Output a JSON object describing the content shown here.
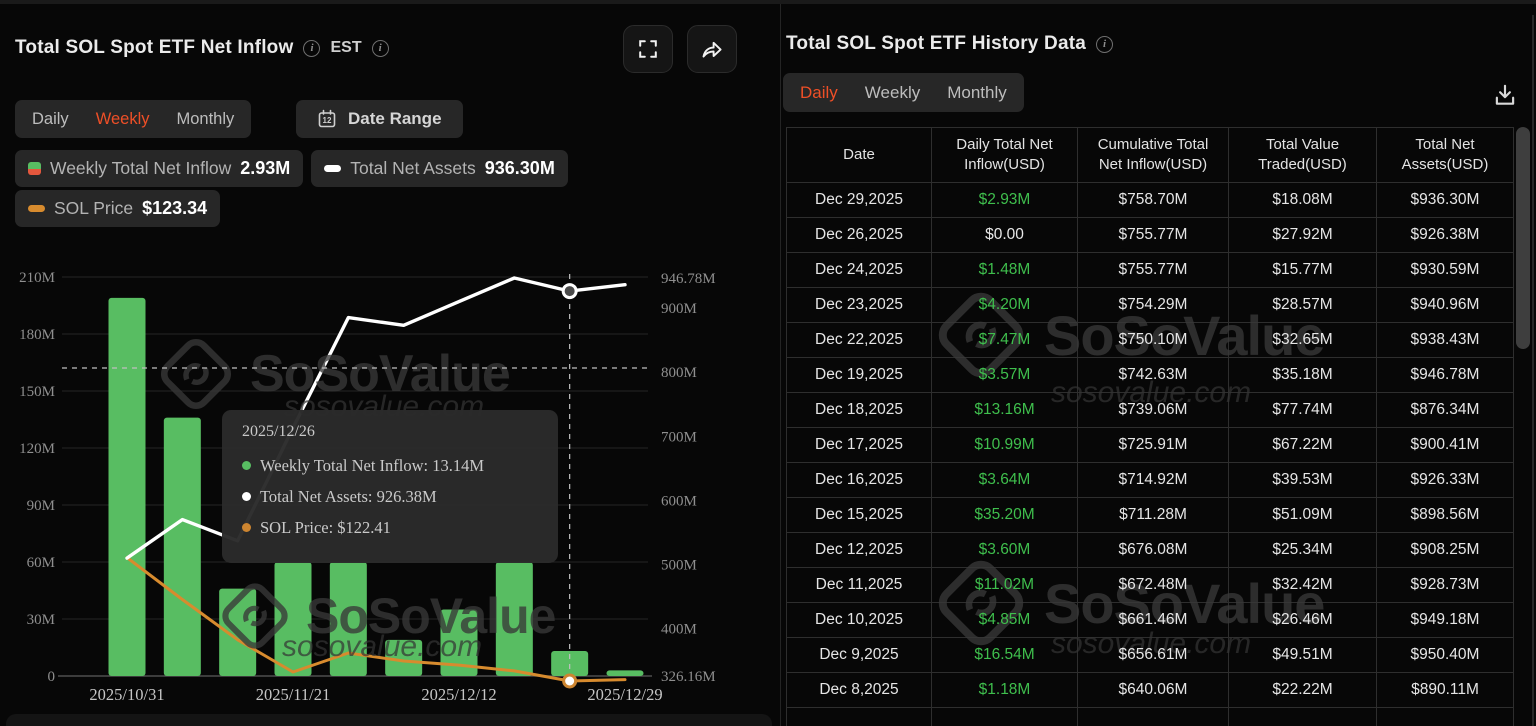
{
  "brand": {
    "accent_orange": "#ee4f27",
    "bar_green": "#58bd62",
    "assets_line_white": "#ffffff",
    "sol_price_orange": "#d78b2e",
    "table_green": "#3fbf4d",
    "watermark_text": "SoSoValue",
    "watermark_domain": "sosovalue.com"
  },
  "left_panel": {
    "title": "Total SOL Spot ETF Net Inflow",
    "timezone_label": "EST",
    "tabs": [
      {
        "label": "Daily",
        "active": false
      },
      {
        "label": "Weekly",
        "active": true
      },
      {
        "label": "Monthly",
        "active": false
      }
    ],
    "date_range_label": "Date Range",
    "legend": [
      {
        "label": "Weekly Total Net Inflow",
        "value": "2.93M",
        "icon": "green-red-square"
      },
      {
        "label": "Total Net Assets",
        "value": "936.30M",
        "icon": "white-dash"
      },
      {
        "label": "SOL Price",
        "value": "$123.34",
        "icon": "orange-dash"
      }
    ]
  },
  "chart_data": {
    "type": "bar",
    "subtype": "bar+line combo, weekly",
    "num_points": 10,
    "x_tick_labels": [
      "2025/10/31",
      "2025/11/21",
      "2025/12/12",
      "2025/12/29"
    ],
    "x_tick_indices": [
      0,
      3,
      6,
      9
    ],
    "bar_series": {
      "name": "Weekly Total Net Inflow",
      "axis": "left",
      "unit": "USD millions",
      "values_m": [
        199,
        136,
        46,
        60,
        60,
        19,
        35,
        60,
        13.14,
        2.93
      ]
    },
    "line_series": [
      {
        "name": "Total Net Assets",
        "axis": "right",
        "unit": "USD millions",
        "values_m": [
          510,
          570,
          537,
          713,
          885,
          873,
          910,
          946.78,
          926.38,
          936.3
        ]
      },
      {
        "name": "SOL Price",
        "axis": "hidden",
        "unit": "USD",
        "values": [
          202,
          175,
          149,
          128.2,
          140.5,
          135.3,
          132.7,
          128.9,
          122.41,
          123.34
        ]
      }
    ],
    "left_axis": {
      "ticks": [
        "210M",
        "180M",
        "150M",
        "120M",
        "90M",
        "60M",
        "30M",
        "0"
      ],
      "min": 0,
      "max_m": 210
    },
    "right_axis": {
      "ticks": [
        "946.78M",
        "900M",
        "800M",
        "700M",
        "600M",
        "500M",
        "400M",
        "326.16M"
      ],
      "tick_values_m": [
        946.78,
        900,
        800,
        700,
        600,
        500,
        400,
        326.16
      ],
      "min_m": 326.16,
      "max_m": 946.78
    },
    "grid": true,
    "legend_position": "top-left chips",
    "tooltip": {
      "date": "2025/12/26",
      "highlight_index": 8,
      "rows": [
        {
          "label": "Weekly Total Net Inflow",
          "value": "13.14M",
          "dot": "#58bd62"
        },
        {
          "label": "Total Net Assets",
          "value": "926.38M",
          "dot": "#ffffff"
        },
        {
          "label": "SOL Price",
          "value": "$122.41",
          "dot": "#cd8530"
        }
      ]
    }
  },
  "right_panel": {
    "title": "Total SOL Spot ETF History Data",
    "tabs": [
      {
        "label": "Daily",
        "active": true
      },
      {
        "label": "Weekly",
        "active": false
      },
      {
        "label": "Monthly",
        "active": false
      }
    ],
    "table": {
      "headers": [
        "Date",
        "Daily Total Net Inflow(USD)",
        "Cumulative Total Net Inflow(USD)",
        "Total Value Traded(USD)",
        "Total Net Assets(USD)"
      ],
      "rows": [
        {
          "cells": [
            "Dec 29,2025",
            "$2.93M",
            "$758.70M",
            "$18.08M",
            "$936.30M"
          ],
          "inflow_green": true
        },
        {
          "cells": [
            "Dec 26,2025",
            "$0.00",
            "$755.77M",
            "$27.92M",
            "$926.38M"
          ],
          "inflow_green": false
        },
        {
          "cells": [
            "Dec 24,2025",
            "$1.48M",
            "$755.77M",
            "$15.77M",
            "$930.59M"
          ],
          "inflow_green": true
        },
        {
          "cells": [
            "Dec 23,2025",
            "$4.20M",
            "$754.29M",
            "$28.57M",
            "$940.96M"
          ],
          "inflow_green": true
        },
        {
          "cells": [
            "Dec 22,2025",
            "$7.47M",
            "$750.10M",
            "$32.65M",
            "$938.43M"
          ],
          "inflow_green": true
        },
        {
          "cells": [
            "Dec 19,2025",
            "$3.57M",
            "$742.63M",
            "$35.18M",
            "$946.78M"
          ],
          "inflow_green": true
        },
        {
          "cells": [
            "Dec 18,2025",
            "$13.16M",
            "$739.06M",
            "$77.74M",
            "$876.34M"
          ],
          "inflow_green": true
        },
        {
          "cells": [
            "Dec 17,2025",
            "$10.99M",
            "$725.91M",
            "$67.22M",
            "$900.41M"
          ],
          "inflow_green": true
        },
        {
          "cells": [
            "Dec 16,2025",
            "$3.64M",
            "$714.92M",
            "$39.53M",
            "$926.33M"
          ],
          "inflow_green": true
        },
        {
          "cells": [
            "Dec 15,2025",
            "$35.20M",
            "$711.28M",
            "$51.09M",
            "$898.56M"
          ],
          "inflow_green": true
        },
        {
          "cells": [
            "Dec 12,2025",
            "$3.60M",
            "$676.08M",
            "$25.34M",
            "$908.25M"
          ],
          "inflow_green": true
        },
        {
          "cells": [
            "Dec 11,2025",
            "$11.02M",
            "$672.48M",
            "$32.42M",
            "$928.73M"
          ],
          "inflow_green": true
        },
        {
          "cells": [
            "Dec 10,2025",
            "$4.85M",
            "$661.46M",
            "$26.46M",
            "$949.18M"
          ],
          "inflow_green": true
        },
        {
          "cells": [
            "Dec 9,2025",
            "$16.54M",
            "$656.61M",
            "$49.51M",
            "$950.40M"
          ],
          "inflow_green": true
        },
        {
          "cells": [
            "Dec 8,2025",
            "$1.18M",
            "$640.06M",
            "$22.22M",
            "$890.11M"
          ],
          "inflow_green": true
        }
      ]
    }
  }
}
